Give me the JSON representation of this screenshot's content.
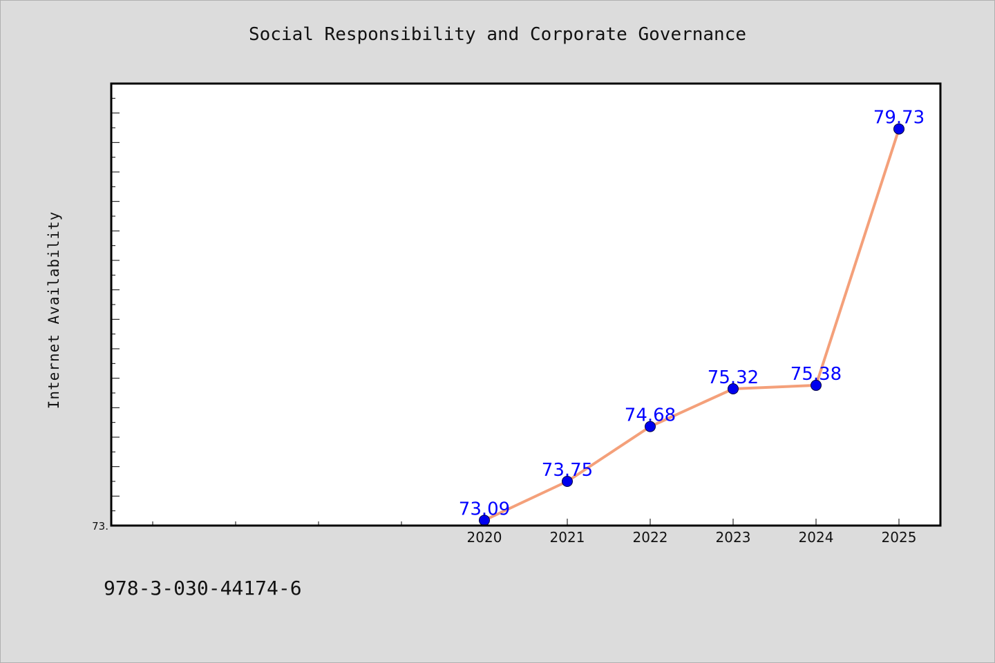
{
  "title": "Social Responsibility and Corporate Governance",
  "footer_text": "978-3-030-44174-6",
  "chart_data": {
    "type": "line",
    "title": "Social Responsibility and Corporate Governance",
    "xlabel": "",
    "ylabel": "Internet Availability",
    "x": [
      "2020",
      "2021",
      "2022",
      "2023",
      "2024",
      "2025"
    ],
    "series": [
      {
        "values": [
          73.09,
          73.75,
          74.68,
          75.32,
          75.38,
          79.73
        ],
        "data_labels": [
          "73.09",
          "73.75",
          "74.68",
          "75.32",
          "75.38",
          "79.73"
        ]
      }
    ],
    "ytick_labels": [
      "73."
    ],
    "ylim": [
      73.0,
      80.5
    ],
    "xlim": [
      2015.5,
      2025.5
    ],
    "grid": false,
    "legend": "none",
    "colors": {
      "line": "#f4a07a",
      "marker": "#0000ee",
      "data_label": "#0000ff",
      "plot_bg": "#ffffff",
      "page_bg": "#dcdcdc"
    }
  }
}
